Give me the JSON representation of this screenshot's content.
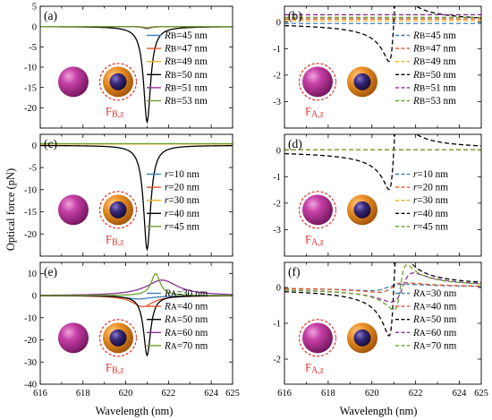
{
  "axis_labels": {
    "ylabel": "Optical force (pN)",
    "xlabel": "Wavelength (nm)"
  },
  "x_ticks": [
    "616",
    "618",
    "620",
    "622",
    "624",
    "625"
  ],
  "colors": {
    "black": "#000000",
    "blue": "#3d7ebf",
    "red": "#e2552a",
    "yellow": "#e8b224",
    "purple": "#8a2f92",
    "green": "#6aa12c",
    "sphere_magenta": "#b8339a",
    "shell_orange": "#e0861e",
    "core_navy": "#2b1c5a",
    "force_label_red": "#d9312a"
  },
  "chart_data": [
    {
      "type": "line",
      "panel": "(a)",
      "force_label": "F",
      "force_sub": "B,z",
      "highlight": "right",
      "xlim": [
        616,
        625
      ],
      "ylim": [
        -25,
        5
      ],
      "yticks": [
        "5",
        "0",
        "-5",
        "-10",
        "-15",
        "-20"
      ],
      "series": [
        {
          "name": "RB=45 nm",
          "sym": "R",
          "sub": "B",
          "rest": "=45 nm",
          "color": "blue",
          "dash": false,
          "shape": "dip",
          "center": 621.0,
          "width": 0.2,
          "amp": 0.3,
          "base": 0
        },
        {
          "name": "RB=47 nm",
          "sym": "R",
          "sub": "B",
          "rest": "=47 nm",
          "color": "red",
          "dash": false,
          "shape": "dip",
          "center": 621.0,
          "width": 0.2,
          "amp": 0.3,
          "base": 0
        },
        {
          "name": "RB=49 nm",
          "sym": "R",
          "sub": "B",
          "rest": "=49 nm",
          "color": "yellow",
          "dash": false,
          "shape": "dip",
          "center": 621.0,
          "width": 0.2,
          "amp": 0.5,
          "base": 0
        },
        {
          "name": "RB=50 nm",
          "sym": "R",
          "sub": "B",
          "rest": "=50 nm",
          "color": "black",
          "dash": false,
          "shape": "dip",
          "center": 621.0,
          "width": 0.2,
          "amp": 23.5,
          "base": 0
        },
        {
          "name": "RB=51 nm",
          "sym": "R",
          "sub": "B",
          "rest": "=51 nm",
          "color": "purple",
          "dash": false,
          "shape": "dip",
          "center": 621.0,
          "width": 0.2,
          "amp": 0.5,
          "base": 0
        },
        {
          "name": "RB=53 nm",
          "sym": "R",
          "sub": "B",
          "rest": "=53 nm",
          "color": "green",
          "dash": false,
          "shape": "dip",
          "center": 621.0,
          "width": 0.2,
          "amp": 0.3,
          "base": 0
        }
      ]
    },
    {
      "type": "line",
      "panel": "(b)",
      "force_label": "F",
      "force_sub": "A,z",
      "highlight": "left",
      "xlim": [
        616,
        625
      ],
      "ylim": [
        -4,
        0.6
      ],
      "yticks": [
        "0",
        "-1",
        "-2",
        "-3"
      ],
      "series": [
        {
          "name": "RB=45 nm",
          "sym": "R",
          "sub": "B",
          "rest": "=45 nm",
          "color": "blue",
          "dash": true,
          "shape": "flat",
          "base": -0.05
        },
        {
          "name": "RB=47 nm",
          "sym": "R",
          "sub": "B",
          "rest": "=47 nm",
          "color": "red",
          "dash": true,
          "shape": "flat",
          "base": 0.12
        },
        {
          "name": "RB=49 nm",
          "sym": "R",
          "sub": "B",
          "rest": "=49 nm",
          "color": "yellow",
          "dash": true,
          "shape": "flat",
          "base": 0.05
        },
        {
          "name": "RB=50 nm",
          "sym": "R",
          "sub": "B",
          "rest": "=50 nm",
          "color": "black",
          "dash": true,
          "shape": "fano",
          "center": 621.0,
          "width": 0.22,
          "amp": 3.3,
          "base": 0
        },
        {
          "name": "RB=51 nm",
          "sym": "R",
          "sub": "B",
          "rest": "=51 nm",
          "color": "purple",
          "dash": true,
          "shape": "flat",
          "base": 0.28
        },
        {
          "name": "RB=53 nm",
          "sym": "R",
          "sub": "B",
          "rest": "=53 nm",
          "color": "green",
          "dash": true,
          "shape": "flat",
          "base": 0.18
        }
      ]
    },
    {
      "type": "line",
      "panel": "(c)",
      "force_label": "F",
      "force_sub": "B,z",
      "highlight": "right",
      "xlim": [
        616,
        625
      ],
      "ylim": [
        -25,
        2.5
      ],
      "yticks": [
        "0",
        "-5",
        "-10",
        "-15",
        "-20"
      ],
      "series": [
        {
          "name": "r=10 nm",
          "sym": "r",
          "sub": "",
          "rest": "=10 nm",
          "color": "blue",
          "dash": false,
          "shape": "flat",
          "base": 0.3
        },
        {
          "name": "r=20 nm",
          "sym": "r",
          "sub": "",
          "rest": "=20 nm",
          "color": "red",
          "dash": false,
          "shape": "flat",
          "base": 0.3
        },
        {
          "name": "r=30 nm",
          "sym": "r",
          "sub": "",
          "rest": "=30 nm",
          "color": "yellow",
          "dash": false,
          "shape": "flat",
          "base": 0.3
        },
        {
          "name": "r=40 nm",
          "sym": "r",
          "sub": "",
          "rest": "=40 nm",
          "color": "black",
          "dash": false,
          "shape": "dip",
          "center": 621.0,
          "width": 0.2,
          "amp": 23.5,
          "base": 0
        },
        {
          "name": "r=45 nm",
          "sym": "r",
          "sub": "",
          "rest": "=45 nm",
          "color": "green",
          "dash": false,
          "shape": "flat",
          "base": 0.4
        }
      ]
    },
    {
      "type": "line",
      "panel": "(d)",
      "force_label": "F",
      "force_sub": "A,z",
      "highlight": "left",
      "xlim": [
        616,
        625
      ],
      "ylim": [
        -4,
        0.6
      ],
      "yticks": [
        "0",
        "-1",
        "-2",
        "-3"
      ],
      "series": [
        {
          "name": "r=10 nm",
          "sym": "r",
          "sub": "",
          "rest": "=10 nm",
          "color": "blue",
          "dash": true,
          "shape": "flat",
          "base": 0.02
        },
        {
          "name": "r=20 nm",
          "sym": "r",
          "sub": "",
          "rest": "=20 nm",
          "color": "red",
          "dash": true,
          "shape": "flat",
          "base": 0.02
        },
        {
          "name": "r=30 nm",
          "sym": "r",
          "sub": "",
          "rest": "=30 nm",
          "color": "yellow",
          "dash": true,
          "shape": "flat",
          "base": 0.02
        },
        {
          "name": "r=40 nm",
          "sym": "r",
          "sub": "",
          "rest": "=40 nm",
          "color": "black",
          "dash": true,
          "shape": "fano",
          "center": 621.0,
          "width": 0.22,
          "amp": 3.3,
          "base": 0
        },
        {
          "name": "r=45 nm",
          "sym": "r",
          "sub": "",
          "rest": "=45 nm",
          "color": "green",
          "dash": true,
          "shape": "flat",
          "base": 0.02
        }
      ]
    },
    {
      "type": "line",
      "panel": "(e)",
      "force_label": "F",
      "force_sub": "B,z",
      "highlight": "right",
      "xlim": [
        616,
        625
      ],
      "ylim": [
        -40,
        15
      ],
      "yticks": [
        "10",
        "0",
        "-10",
        "-20",
        "-30",
        "-40"
      ],
      "series": [
        {
          "name": "RA=30 nm",
          "sym": "R",
          "sub": "A",
          "rest": "=30 nm",
          "color": "blue",
          "dash": false,
          "shape": "dip",
          "center": 620.6,
          "width": 0.8,
          "amp": 1.5,
          "base": 0
        },
        {
          "name": "RA=40 nm",
          "sym": "R",
          "sub": "A",
          "rest": "=40 nm",
          "color": "red",
          "dash": false,
          "shape": "dip",
          "center": 620.8,
          "width": 0.6,
          "amp": 5,
          "base": 0
        },
        {
          "name": "RA=50 nm",
          "sym": "R",
          "sub": "A",
          "rest": "=50 nm",
          "color": "black",
          "dash": false,
          "shape": "dip",
          "center": 621.0,
          "width": 0.2,
          "amp": 27,
          "base": 0
        },
        {
          "name": "RA=60 nm",
          "sym": "R",
          "sub": "A",
          "rest": "=60 nm",
          "color": "purple",
          "dash": false,
          "shape": "peak",
          "center": 621.7,
          "width": 0.9,
          "amp": 7,
          "base": 0
        },
        {
          "name": "RA=70 nm",
          "sym": "R",
          "sub": "A",
          "rest": "=70 nm",
          "color": "green",
          "dash": false,
          "shape": "peak",
          "center": 621.4,
          "width": 0.25,
          "amp": 10,
          "base": 0
        }
      ]
    },
    {
      "type": "line",
      "panel": "(f)",
      "force_label": "F",
      "force_sub": "A,z",
      "highlight": "left",
      "xlim": [
        616,
        625
      ],
      "ylim": [
        -2.7,
        0.7
      ],
      "yticks": [
        "0",
        "-1",
        "-2"
      ],
      "series": [
        {
          "name": "RA=30 nm",
          "sym": "R",
          "sub": "A",
          "rest": "=30 nm",
          "color": "blue",
          "dash": true,
          "shape": "fano",
          "center": 620.7,
          "width": 0.8,
          "amp": 0.2,
          "base": 0
        },
        {
          "name": "RA=40 nm",
          "sym": "R",
          "sub": "A",
          "rest": "=40 nm",
          "color": "red",
          "dash": true,
          "shape": "fano",
          "center": 620.9,
          "width": 0.6,
          "amp": 0.3,
          "base": 0
        },
        {
          "name": "RA=50 nm",
          "sym": "R",
          "sub": "A",
          "rest": "=50 nm",
          "color": "black",
          "dash": true,
          "shape": "fano",
          "center": 621.0,
          "width": 0.22,
          "amp": 3.0,
          "base": 0
        },
        {
          "name": "RA=60 nm",
          "sym": "R",
          "sub": "A",
          "rest": "=60 nm",
          "color": "purple",
          "dash": true,
          "shape": "fano",
          "center": 621.4,
          "width": 0.5,
          "amp": 0.9,
          "base": 0
        },
        {
          "name": "RA=70 nm",
          "sym": "R",
          "sub": "A",
          "rest": "=70 nm",
          "color": "green",
          "dash": true,
          "shape": "fano",
          "center": 621.3,
          "width": 0.3,
          "amp": 1.4,
          "base": 0
        }
      ]
    }
  ]
}
